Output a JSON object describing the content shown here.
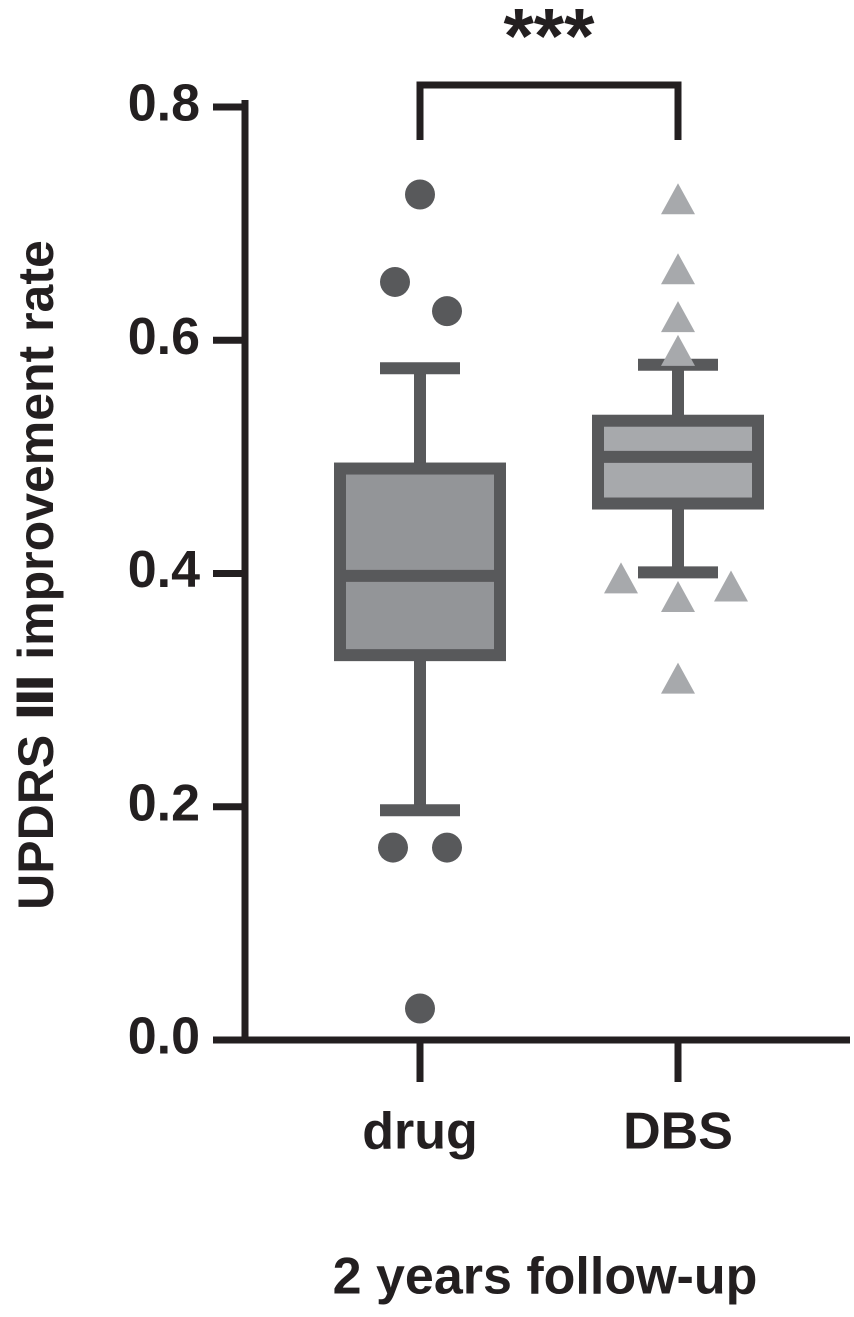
{
  "chart_data": {
    "type": "box",
    "ylabel": "UPDRS Ⅲ improvement rate",
    "xlabel": "2 years follow-up",
    "categories": [
      "drug",
      "DBS"
    ],
    "boxes": [
      {
        "whislo": 0.197,
        "q1": 0.33,
        "med": 0.398,
        "q3": 0.49,
        "whishi": 0.576,
        "fliers": [
          0.725,
          0.65,
          0.625,
          0.165,
          0.165,
          0.027
        ],
        "fill": "#939598",
        "stroke": "#58595b",
        "marker": "circle",
        "marker_color": "#58595b"
      },
      {
        "whislo": 0.401,
        "q1": 0.46,
        "med": 0.5,
        "q3": 0.531,
        "whishi": 0.579,
        "fliers": [
          0.72,
          0.66,
          0.619,
          0.59,
          0.395,
          0.379,
          0.388,
          0.309
        ],
        "fill": "#a7a9ac",
        "stroke": "#58595b",
        "marker": "triangle",
        "marker_color": "#a7a9ac"
      }
    ],
    "ylim": [
      0,
      0.8
    ],
    "yticks": [
      {
        "value": 0,
        "label": "0.0"
      },
      0.2,
      0.4,
      0.6,
      0.8
    ],
    "annotation": "***"
  }
}
